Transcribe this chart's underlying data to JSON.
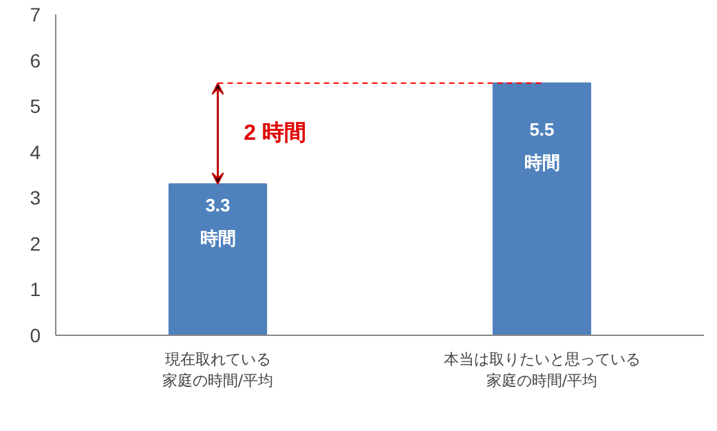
{
  "chart_data": {
    "type": "bar",
    "categories": [
      "現在取れている家庭の時間/平均",
      "本当は取りたいと思っている家庭の時間/平均"
    ],
    "values": [
      3.3,
      5.5
    ],
    "color": "#4f81bd",
    "value_labels": [
      "3.3\n時間",
      "5.5\n時間"
    ],
    "ylim": [
      0,
      7
    ],
    "yticks": [
      0,
      1,
      2,
      3,
      4,
      5,
      6,
      7
    ],
    "grid": false,
    "ref_lines": [
      {
        "axis": "y",
        "value": 5.5,
        "color": "#ff0000",
        "line_style": "dashed"
      }
    ],
    "annotations": [
      "2 時間"
    ]
  }
}
